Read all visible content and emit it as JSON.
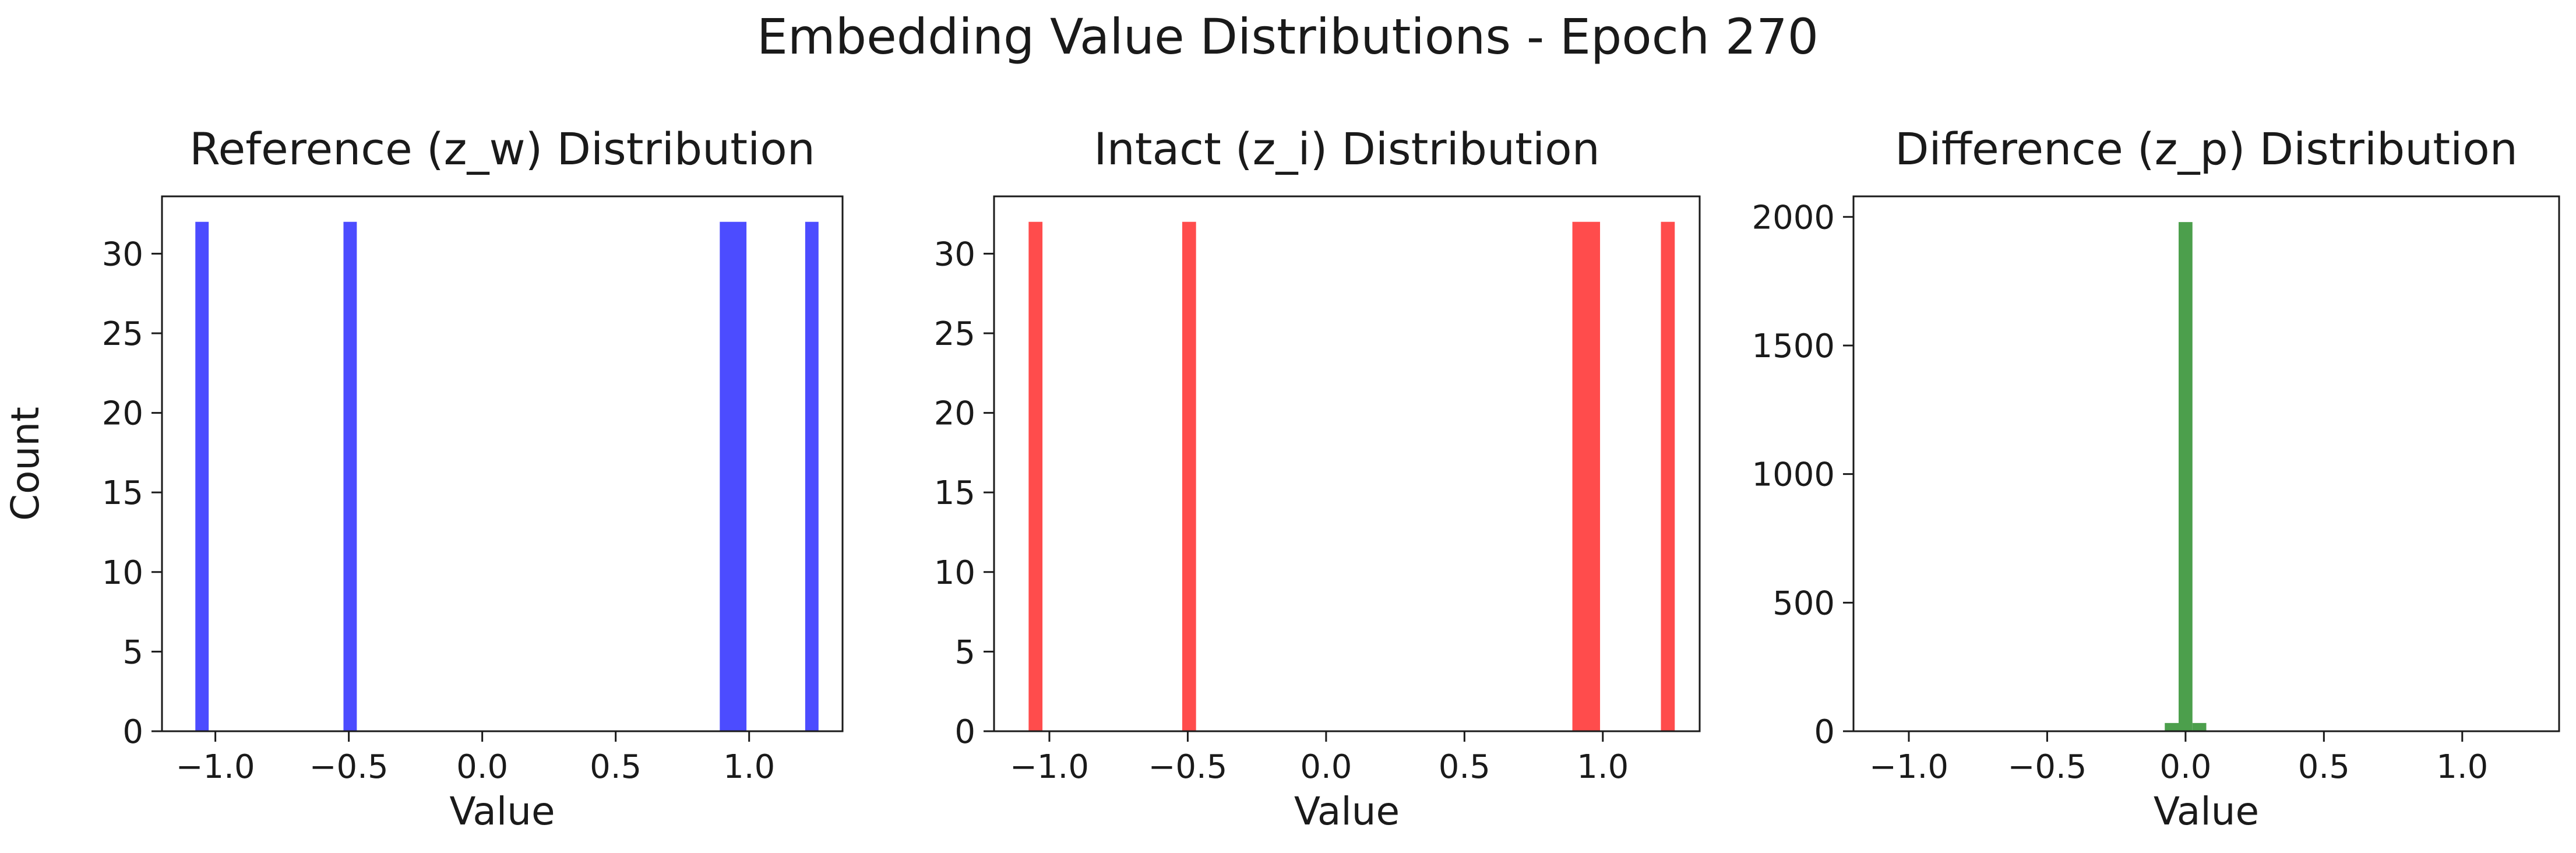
{
  "figure": {
    "title": "Embedding Value Distributions - Epoch 270"
  },
  "chart_data": [
    {
      "type": "bar",
      "title": "Reference (z_w) Distribution",
      "xlabel": "Value",
      "ylabel": "Count",
      "xlim": [
        -1.2,
        1.35
      ],
      "ylim": [
        0,
        33.6
      ],
      "xticks": [
        -1.0,
        -0.5,
        0.0,
        0.5,
        1.0
      ],
      "xtick_labels": [
        "−1.0",
        "−0.5",
        "0.0",
        "0.5",
        "1.0"
      ],
      "yticks": [
        0,
        5,
        10,
        15,
        20,
        25,
        30
      ],
      "ytick_labels": [
        "0",
        "5",
        "10",
        "15",
        "20",
        "25",
        "30"
      ],
      "color": "#4c4cff",
      "grid": false,
      "bars": [
        {
          "x0": -1.075,
          "x1": -1.025,
          "count": 32
        },
        {
          "x0": -0.52,
          "x1": -0.47,
          "count": 32
        },
        {
          "x0": 0.89,
          "x1": 0.99,
          "count": 32
        },
        {
          "x0": 1.21,
          "x1": 1.26,
          "count": 32
        }
      ]
    },
    {
      "type": "bar",
      "title": "Intact (z_i) Distribution",
      "xlabel": "Value",
      "ylabel": "",
      "xlim": [
        -1.2,
        1.35
      ],
      "ylim": [
        0,
        33.6
      ],
      "xticks": [
        -1.0,
        -0.5,
        0.0,
        0.5,
        1.0
      ],
      "xtick_labels": [
        "−1.0",
        "−0.5",
        "0.0",
        "0.5",
        "1.0"
      ],
      "yticks": [
        0,
        5,
        10,
        15,
        20,
        25,
        30
      ],
      "ytick_labels": [
        "0",
        "5",
        "10",
        "15",
        "20",
        "25",
        "30"
      ],
      "color": "#ff4c4c",
      "grid": false,
      "bars": [
        {
          "x0": -1.075,
          "x1": -1.025,
          "count": 32
        },
        {
          "x0": -0.52,
          "x1": -0.47,
          "count": 32
        },
        {
          "x0": 0.89,
          "x1": 0.99,
          "count": 32
        },
        {
          "x0": 1.21,
          "x1": 1.26,
          "count": 32
        }
      ]
    },
    {
      "type": "bar",
      "title": "Difference (z_p) Distribution",
      "xlabel": "Value",
      "ylabel": "",
      "xlim": [
        -1.2,
        1.35
      ],
      "ylim": [
        0,
        2080
      ],
      "xticks": [
        -1.0,
        -0.5,
        0.0,
        0.5,
        1.0
      ],
      "xtick_labels": [
        "−1.0",
        "−0.5",
        "0.0",
        "0.5",
        "1.0"
      ],
      "yticks": [
        0,
        500,
        1000,
        1500,
        2000
      ],
      "ytick_labels": [
        "0",
        "500",
        "1000",
        "1500",
        "2000"
      ],
      "color": "#4c9f4c",
      "grid": false,
      "bars": [
        {
          "x0": -0.075,
          "x1": -0.025,
          "count": 32
        },
        {
          "x0": -0.025,
          "x1": 0.025,
          "count": 1980
        },
        {
          "x0": 0.025,
          "x1": 0.075,
          "count": 32
        }
      ]
    }
  ]
}
